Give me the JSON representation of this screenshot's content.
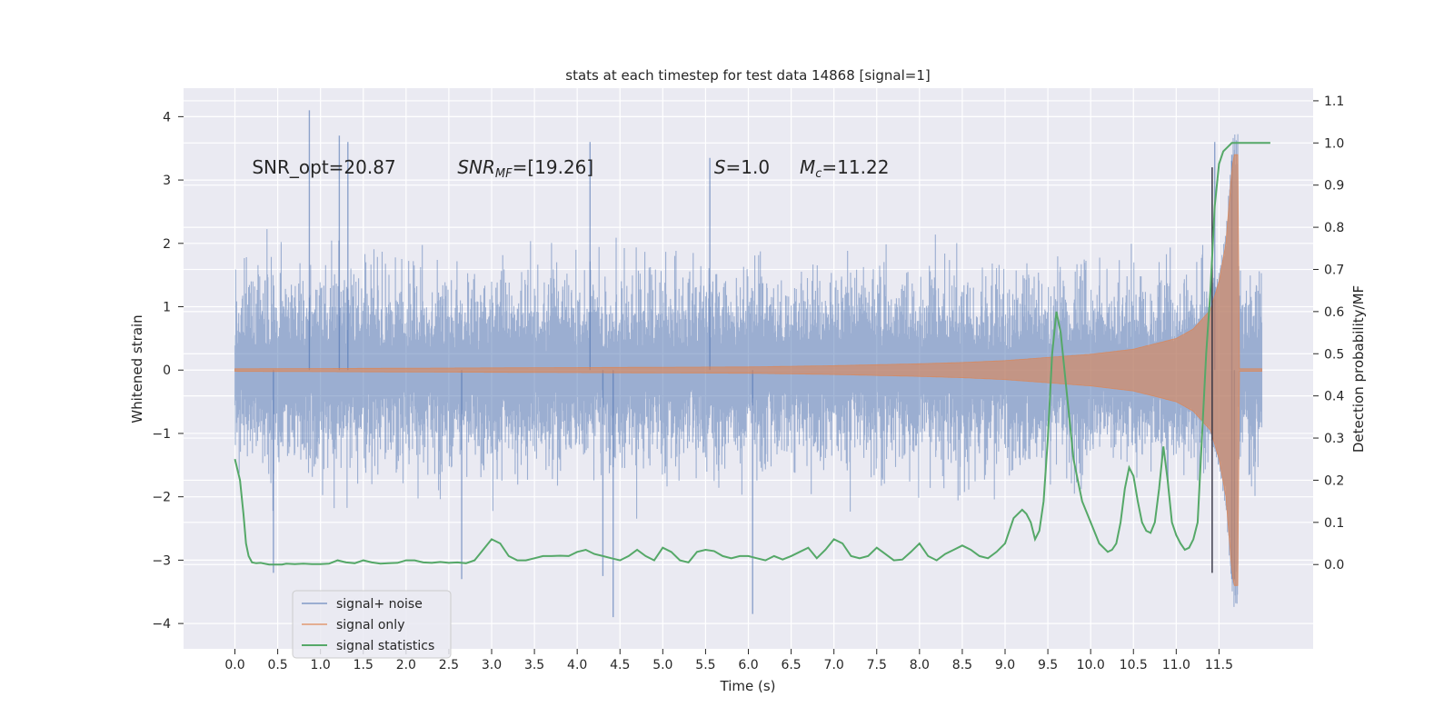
{
  "chart_data": {
    "type": "line",
    "title": "stats at each timestep for test data 14868 [signal=1]",
    "xlabel": "Time (s)",
    "ylabel": "Whitened strain",
    "y2label": "Detection probability/MF",
    "xlim": [
      -0.6,
      12.6
    ],
    "ylim": [
      -4.4,
      4.45
    ],
    "y2lim": [
      -0.2,
      1.13
    ],
    "xticks": [
      "0.0",
      "0.5",
      "1.0",
      "1.5",
      "2.0",
      "2.5",
      "3.0",
      "3.5",
      "4.0",
      "4.5",
      "5.0",
      "5.5",
      "6.0",
      "6.5",
      "7.0",
      "7.5",
      "8.0",
      "8.5",
      "9.0",
      "9.5",
      "10.0",
      "10.5",
      "11.0",
      "11.5"
    ],
    "yticks": [
      "−4",
      "−3",
      "−2",
      "−1",
      "0",
      "1",
      "2",
      "3",
      "4"
    ],
    "y2ticks": [
      "0.0",
      "0.1",
      "0.2",
      "0.3",
      "0.4",
      "0.5",
      "0.6",
      "0.7",
      "0.8",
      "0.9",
      "1.0",
      "1.1"
    ],
    "grid": true,
    "legend_position": "lower-left",
    "annotations": [
      {
        "x": 0.2,
        "y": 3.2,
        "text": "SNR_opt=20.87"
      },
      {
        "x": 2.6,
        "y": 3.2,
        "text": "SNR_MF=[19.26]",
        "math": true
      },
      {
        "x": 5.6,
        "y": 3.2,
        "text": "S=1.0",
        "math": true
      },
      {
        "x": 6.6,
        "y": 3.2,
        "text": "M_c=11.22",
        "math": true
      }
    ],
    "series": [
      {
        "name": "signal+ noise",
        "axis": "left",
        "color": "#4c72b0",
        "alpha": 0.5,
        "x_range": [
          0.0,
          12.0
        ],
        "typical_envelope": [
          -1.8,
          1.9
        ],
        "merger": {
          "x": 11.65,
          "peak": 3.4,
          "trough": -3.3
        },
        "noise_spikes": [
          {
            "x": 0.87,
            "y": 4.1
          },
          {
            "x": 1.22,
            "y": 3.7
          },
          {
            "x": 1.32,
            "y": 3.6
          },
          {
            "x": 4.15,
            "y": 3.6
          },
          {
            "x": 5.55,
            "y": 3.35
          },
          {
            "x": 11.45,
            "y": 3.6
          },
          {
            "x": 4.42,
            "y": -3.9
          },
          {
            "x": 6.05,
            "y": -3.85
          },
          {
            "x": 4.3,
            "y": -3.25
          },
          {
            "x": 0.45,
            "y": -3.2
          },
          {
            "x": 2.65,
            "y": -3.3
          },
          {
            "x": 11.68,
            "y": -3.3
          }
        ]
      },
      {
        "name": "signal only",
        "axis": "left",
        "color": "#dd8452",
        "alpha": 0.6,
        "x": [
          0,
          2,
          4,
          6,
          7,
          8,
          8.5,
          9,
          9.5,
          10,
          10.5,
          11,
          11.2,
          11.4,
          11.5,
          11.58,
          11.64,
          11.67
        ],
        "envelope": [
          0.02,
          0.03,
          0.04,
          0.05,
          0.07,
          0.1,
          0.12,
          0.15,
          0.2,
          0.25,
          0.33,
          0.5,
          0.65,
          0.95,
          1.4,
          2.0,
          3.0,
          3.4
        ]
      },
      {
        "name": "signal statistics",
        "axis": "right",
        "color": "#55a868",
        "x": [
          0,
          0.06,
          0.1,
          0.13,
          0.16,
          0.2,
          0.25,
          0.3,
          0.4,
          0.5,
          0.55,
          0.6,
          0.7,
          0.8,
          0.9,
          1.0,
          1.1,
          1.2,
          1.3,
          1.4,
          1.5,
          1.6,
          1.7,
          1.8,
          1.9,
          2.0,
          2.1,
          2.2,
          2.3,
          2.4,
          2.5,
          2.6,
          2.7,
          2.8,
          2.9,
          3.0,
          3.1,
          3.2,
          3.3,
          3.4,
          3.5,
          3.6,
          3.7,
          3.8,
          3.9,
          4.0,
          4.1,
          4.2,
          4.3,
          4.4,
          4.5,
          4.6,
          4.7,
          4.8,
          4.9,
          5.0,
          5.1,
          5.2,
          5.3,
          5.4,
          5.5,
          5.6,
          5.7,
          5.8,
          5.9,
          6.0,
          6.1,
          6.2,
          6.3,
          6.4,
          6.5,
          6.6,
          6.7,
          6.8,
          6.9,
          7.0,
          7.1,
          7.2,
          7.3,
          7.4,
          7.5,
          7.6,
          7.7,
          7.8,
          7.9,
          8.0,
          8.1,
          8.2,
          8.3,
          8.4,
          8.5,
          8.6,
          8.7,
          8.8,
          8.9,
          9.0,
          9.1,
          9.2,
          9.25,
          9.3,
          9.35,
          9.4,
          9.45,
          9.5,
          9.55,
          9.6,
          9.65,
          9.7,
          9.75,
          9.8,
          9.85,
          9.9,
          10.0,
          10.1,
          10.2,
          10.25,
          10.3,
          10.35,
          10.4,
          10.45,
          10.5,
          10.55,
          10.6,
          10.65,
          10.7,
          10.75,
          10.8,
          10.85,
          10.9,
          10.95,
          11.0,
          11.05,
          11.1,
          11.15,
          11.2,
          11.25,
          11.3,
          11.35,
          11.4,
          11.45,
          11.5,
          11.55,
          11.6,
          11.65,
          11.7,
          11.8,
          11.9,
          12.0,
          12.1
        ],
        "values": [
          0.25,
          0.2,
          0.12,
          0.05,
          0.02,
          0.005,
          0.003,
          0.004,
          0.0,
          0.0,
          0.0,
          0.002,
          0.001,
          0.002,
          0.001,
          0.001,
          0.002,
          0.01,
          0.005,
          0.003,
          0.01,
          0.005,
          0.002,
          0.003,
          0.004,
          0.01,
          0.01,
          0.005,
          0.004,
          0.006,
          0.004,
          0.005,
          0.003,
          0.01,
          0.035,
          0.06,
          0.05,
          0.02,
          0.01,
          0.01,
          0.015,
          0.02,
          0.02,
          0.021,
          0.02,
          0.03,
          0.035,
          0.025,
          0.02,
          0.015,
          0.01,
          0.02,
          0.035,
          0.02,
          0.01,
          0.04,
          0.03,
          0.01,
          0.005,
          0.03,
          0.035,
          0.032,
          0.02,
          0.015,
          0.02,
          0.02,
          0.015,
          0.01,
          0.02,
          0.012,
          0.02,
          0.03,
          0.04,
          0.015,
          0.035,
          0.06,
          0.05,
          0.02,
          0.015,
          0.02,
          0.04,
          0.025,
          0.01,
          0.012,
          0.03,
          0.05,
          0.02,
          0.01,
          0.025,
          0.035,
          0.045,
          0.035,
          0.02,
          0.015,
          0.03,
          0.05,
          0.11,
          0.13,
          0.12,
          0.1,
          0.06,
          0.08,
          0.15,
          0.3,
          0.5,
          0.6,
          0.55,
          0.45,
          0.35,
          0.25,
          0.2,
          0.15,
          0.1,
          0.05,
          0.03,
          0.035,
          0.05,
          0.1,
          0.18,
          0.23,
          0.21,
          0.15,
          0.1,
          0.08,
          0.075,
          0.1,
          0.18,
          0.28,
          0.2,
          0.1,
          0.07,
          0.05,
          0.035,
          0.04,
          0.06,
          0.1,
          0.3,
          0.5,
          0.65,
          0.85,
          0.95,
          0.98,
          0.99,
          1.0,
          1.0,
          1.0,
          1.0,
          1.0,
          1.0
        ]
      }
    ],
    "vertical_marker": {
      "x": 11.42,
      "color": "#303040"
    }
  }
}
